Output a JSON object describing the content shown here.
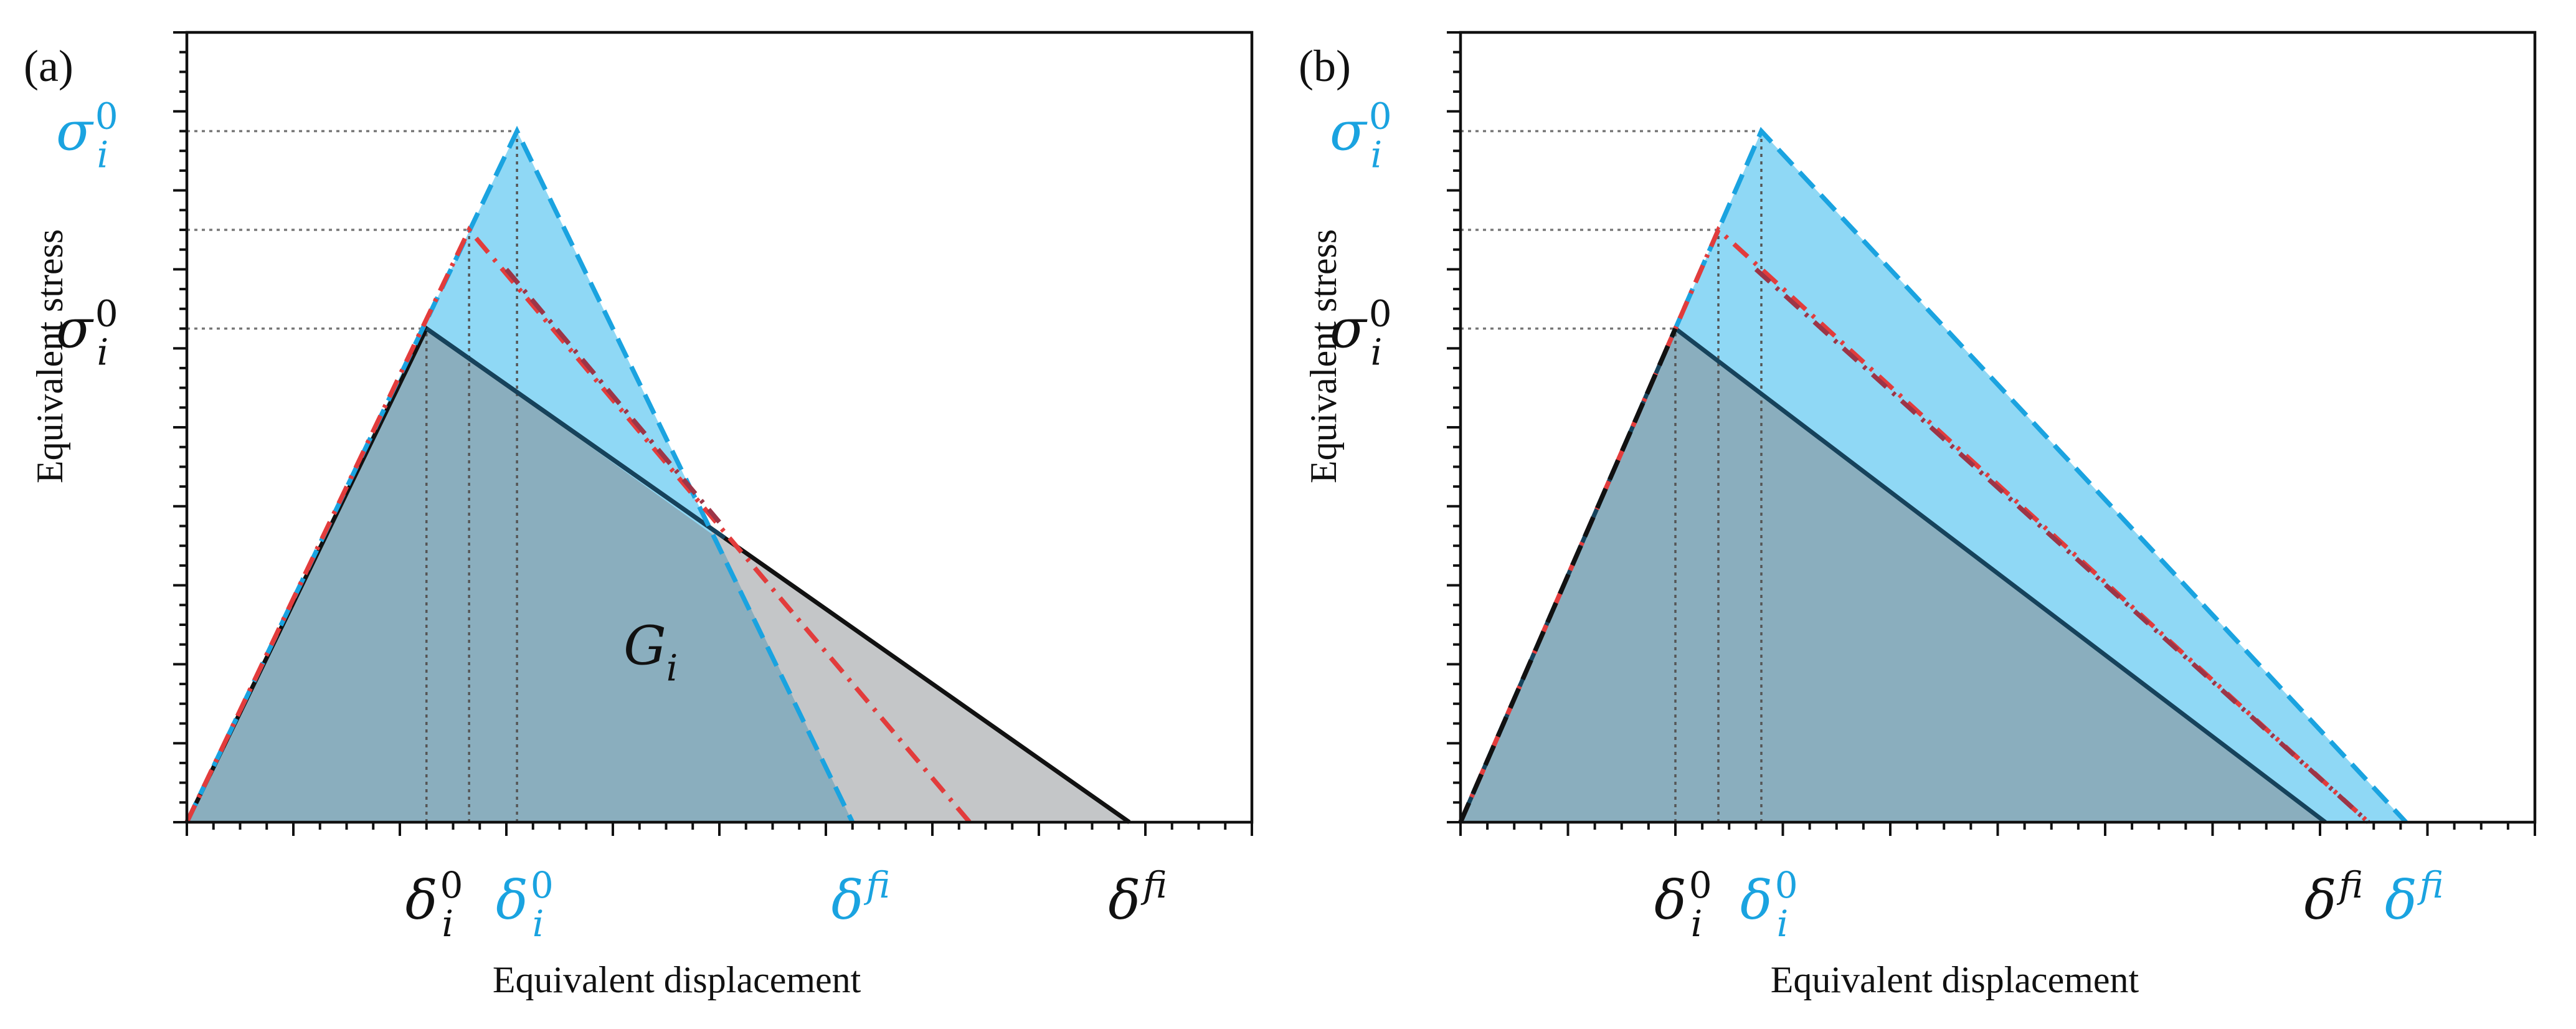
{
  "chart_data": [
    {
      "panel_label": "(a)",
      "type": "line",
      "xlabel": "Equivalent displacement",
      "ylabel": "Equivalent stress",
      "xlim": [
        0,
        10
      ],
      "ylim": [
        0,
        10
      ],
      "grid": false,
      "ticks": {
        "x_major_step": 1,
        "x_minor_per_major": 4,
        "y_major_step": 1,
        "y_minor_per_major": 4
      },
      "series": [
        {
          "name": "black traction-separation law",
          "color": "#111111",
          "style": "solid",
          "x": [
            0,
            2.25,
            8.85
          ],
          "y": [
            0,
            6.25,
            0
          ]
        },
        {
          "name": "navy inner law",
          "color": "#16425b",
          "style": "solid",
          "x": [
            2.25,
            5.05
          ],
          "y": [
            6.25,
            3.6
          ]
        },
        {
          "name": "blue law",
          "color": "#1aa3e0",
          "style": "dashed",
          "x": [
            0,
            3.1,
            6.25
          ],
          "y": [
            0,
            8.75,
            0
          ]
        },
        {
          "name": "red law",
          "color": "#e23c3c",
          "style": "dashdot",
          "x": [
            0,
            2.65,
            7.35
          ],
          "y": [
            0,
            7.5,
            0
          ]
        },
        {
          "name": "dark red law",
          "color": "#9c3547",
          "style": "dashdot",
          "x": [
            3.0,
            5.0
          ],
          "y": [
            7.0,
            3.8
          ]
        }
      ],
      "areas": [
        {
          "name": "black law area",
          "color": "#c4c6c8",
          "x": [
            0,
            2.25,
            8.85
          ],
          "y": [
            0,
            6.25,
            0
          ]
        },
        {
          "name": "blue law area",
          "color": "#8fd8f5",
          "x": [
            0,
            3.1,
            6.25
          ],
          "y": [
            0,
            8.75,
            0
          ]
        },
        {
          "name": "overlap area",
          "color": "#8aaebe",
          "x": [
            0,
            2.25,
            4.98,
            6.25
          ],
          "y": [
            0,
            6.25,
            3.6,
            0
          ]
        }
      ],
      "guide_lines": {
        "x": [
          2.25,
          2.65,
          3.1
        ],
        "y": [
          6.25,
          7.5,
          8.75
        ]
      },
      "y_labels": [
        {
          "symbol": "σ",
          "sub": "i",
          "sup": "0",
          "y": 8.75,
          "color": "#1aa3e0"
        },
        {
          "symbol": "σ",
          "sub": "i",
          "sup": "0",
          "y": 6.25,
          "color": "#111111"
        }
      ],
      "x_labels": [
        {
          "symbol": "δ",
          "sub": "i",
          "sup": "0",
          "x": 2.25,
          "color": "#111111"
        },
        {
          "symbol": "δ",
          "sub": "i",
          "sup": "0",
          "x": 3.1,
          "color": "#1aa3e0"
        },
        {
          "symbol": "δ",
          "sub": "i",
          "sup": "f",
          "x": 6.25,
          "color": "#1aa3e0"
        },
        {
          "symbol": "δ",
          "sub": "i",
          "sup": "f",
          "x": 8.85,
          "color": "#111111"
        }
      ],
      "annotation": {
        "symbol": "G",
        "sub": "i",
        "x": 4.1,
        "y": 2.0,
        "color": "#111111"
      }
    },
    {
      "panel_label": "(b)",
      "type": "line",
      "xlabel": "Equivalent displacement",
      "ylabel": "Equivalent stress",
      "xlim": [
        0,
        10
      ],
      "ylim": [
        0,
        10
      ],
      "grid": false,
      "ticks": {
        "x_major_step": 1,
        "x_minor_per_major": 4,
        "y_major_step": 1,
        "y_minor_per_major": 4
      },
      "series": [
        {
          "name": "navy law",
          "color": "#16425b",
          "style": "solid",
          "x": [
            0,
            2.0,
            8.05
          ],
          "y": [
            0,
            6.25,
            0
          ]
        },
        {
          "name": "blue law",
          "color": "#1aa3e0",
          "style": "dashed",
          "x": [
            0,
            2.8,
            8.8
          ],
          "y": [
            0,
            8.75,
            0
          ]
        },
        {
          "name": "red law",
          "color": "#e23c3c",
          "style": "dashdot",
          "x": [
            0,
            2.4,
            8.45
          ],
          "y": [
            0,
            7.5,
            0
          ]
        },
        {
          "name": "dark red law",
          "color": "#9c3547",
          "style": "dashdot",
          "x": [
            2.75,
            8.45
          ],
          "y": [
            7.0,
            0
          ]
        },
        {
          "name": "black law",
          "color": "#111111",
          "style": "dashed",
          "x": [
            0,
            2.0
          ],
          "y": [
            0,
            6.25
          ]
        }
      ],
      "areas": [
        {
          "name": "blue law area",
          "color": "#8fd8f5",
          "x": [
            0,
            2.8,
            8.8
          ],
          "y": [
            0,
            8.75,
            0
          ]
        },
        {
          "name": "overlap area",
          "color": "#8aaebe",
          "x": [
            0,
            2.0,
            8.05
          ],
          "y": [
            0,
            6.25,
            0
          ]
        }
      ],
      "guide_lines": {
        "x": [
          2.0,
          2.4,
          2.8
        ],
        "y": [
          6.25,
          7.5,
          8.75
        ]
      },
      "y_labels": [
        {
          "symbol": "σ",
          "sub": "i",
          "sup": "0",
          "y": 8.75,
          "color": "#1aa3e0"
        },
        {
          "symbol": "σ",
          "sub": "i",
          "sup": "0",
          "y": 6.25,
          "color": "#111111"
        }
      ],
      "x_labels": [
        {
          "symbol": "δ",
          "sub": "i",
          "sup": "0",
          "x": 2.0,
          "color": "#111111"
        },
        {
          "symbol": "δ",
          "sub": "i",
          "sup": "0",
          "x": 2.8,
          "color": "#1aa3e0"
        },
        {
          "symbol": "δ",
          "sub": "i",
          "sup": "f",
          "x": 8.05,
          "color": "#111111"
        },
        {
          "symbol": "δ",
          "sub": "i",
          "sup": "f",
          "x": 8.8,
          "color": "#1aa3e0"
        }
      ]
    }
  ]
}
